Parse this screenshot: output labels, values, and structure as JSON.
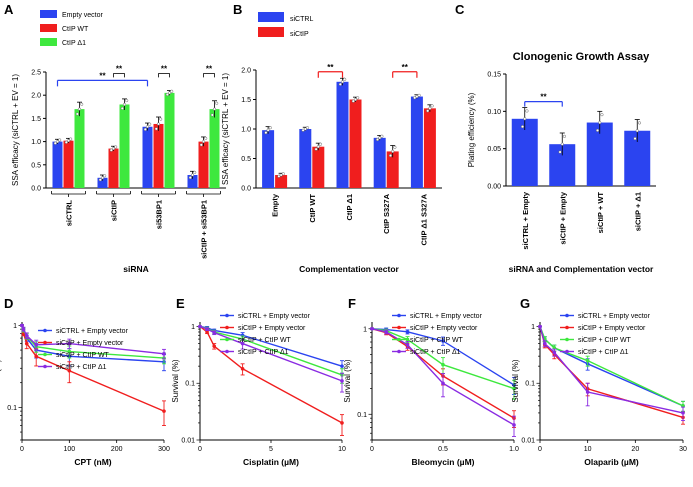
{
  "panels": {
    "A": "A",
    "B": "B",
    "C": "C",
    "D": "D",
    "E": "E",
    "F": "F",
    "G": "G"
  },
  "colors": {
    "blue": "#2b44f0",
    "red": "#f01e1e",
    "green": "#3ee83e",
    "purple": "#8a2be2"
  },
  "chart_data": [
    {
      "id": "A",
      "type": "bar",
      "title": "",
      "xlabel": "siRNA",
      "ylabel": "SSA efficacy (siCTRL + EV = 1)",
      "ylim": [
        0,
        2.5
      ],
      "yticks": [
        "0.0",
        "0.5",
        "1.0",
        "1.5",
        "2.0",
        "2.5"
      ],
      "categories": [
        "siCTRL",
        "siCtIP",
        "si53BP1",
        "siCtIP + si53BP1"
      ],
      "series": [
        {
          "name": "Empty vector",
          "values": [
            1.0,
            0.22,
            1.32,
            0.28
          ],
          "errors": [
            0.05,
            0.06,
            0.08,
            0.08
          ]
        },
        {
          "name": "CtIP WT",
          "values": [
            1.02,
            0.85,
            1.38,
            1.0
          ],
          "errors": [
            0.05,
            0.05,
            0.15,
            0.1
          ]
        },
        {
          "name": "CtIP Δ1",
          "values": [
            1.7,
            1.8,
            2.05,
            1.7
          ],
          "errors": [
            0.15,
            0.12,
            0.05,
            0.18
          ]
        }
      ],
      "annotations": [
        "**",
        "**",
        "**",
        "**"
      ]
    },
    {
      "id": "B",
      "type": "bar",
      "title": "",
      "xlabel": "Complementation vector",
      "ylabel": "SSA efficacy (siCTRL + EV = 1)",
      "ylim": [
        0,
        2.0
      ],
      "yticks": [
        "0.0",
        "0.5",
        "1.0",
        "1.5",
        "2.0"
      ],
      "categories": [
        "Empty",
        "CtIP WT",
        "CtIP Δ1",
        "CtIP S327A",
        "CtIP Δ1 S327A"
      ],
      "series": [
        {
          "name": "siCTRL",
          "values": [
            0.98,
            1.0,
            1.8,
            0.85,
            1.55
          ],
          "errors": [
            0.06,
            0.03,
            0.06,
            0.04,
            0.03
          ]
        },
        {
          "name": "siCtIP",
          "values": [
            0.22,
            0.7,
            1.5,
            0.62,
            1.35
          ],
          "errors": [
            0.03,
            0.06,
            0.04,
            0.1,
            0.06
          ]
        }
      ],
      "annotations": [
        "**",
        "**"
      ]
    },
    {
      "id": "C",
      "type": "bar",
      "title": "Clonogenic Growth Assay",
      "xlabel": "siRNA and Complementation vector",
      "ylabel": "Plating efficiency (%)",
      "ylim": [
        0,
        0.15
      ],
      "yticks": [
        "0.00",
        "0.05",
        "0.10",
        "0.15"
      ],
      "categories": [
        "siCTRL + Empty",
        "siCtIP + Empty",
        "siCtIP + WT",
        "siCtIP + Δ1"
      ],
      "values": [
        0.09,
        0.056,
        0.085,
        0.074
      ],
      "errors": [
        0.015,
        0.015,
        0.015,
        0.015
      ],
      "annotations": [
        "**"
      ]
    },
    {
      "id": "D",
      "type": "line",
      "xlabel": "CPT (nM)",
      "ylabel": "Survival (%)",
      "xlim": [
        0,
        300
      ],
      "xticks": [
        "0",
        "100",
        "200",
        "300"
      ],
      "yticks": [
        "0.1",
        "1"
      ],
      "ylim": [
        0.04,
        1.1
      ],
      "series": [
        {
          "name": "siCTRL + Empty vector",
          "x": [
            0,
            3,
            10,
            30,
            100,
            300
          ],
          "y": [
            1.0,
            0.85,
            0.7,
            0.5,
            0.42,
            0.36
          ],
          "errors": [
            0.02,
            0.05,
            0.06,
            0.1,
            0.1,
            0.08
          ]
        },
        {
          "name": "siCtIP + Empty vector",
          "x": [
            0,
            3,
            10,
            30,
            100,
            300
          ],
          "y": [
            1.0,
            0.8,
            0.6,
            0.42,
            0.28,
            0.09
          ],
          "errors": [
            0.02,
            0.05,
            0.08,
            0.1,
            0.08,
            0.03
          ]
        },
        {
          "name": "siCtIP + CtIP WT",
          "x": [
            0,
            3,
            10,
            30,
            100,
            300
          ],
          "y": [
            1.0,
            0.88,
            0.74,
            0.55,
            0.48,
            0.4
          ],
          "errors": [
            0.02,
            0.05,
            0.06,
            0.08,
            0.08,
            0.06
          ]
        },
        {
          "name": "siCtIP + CtIP Δ1",
          "x": [
            0,
            3,
            10,
            30,
            100,
            300
          ],
          "y": [
            1.0,
            0.9,
            0.75,
            0.58,
            0.6,
            0.45
          ],
          "errors": [
            0.02,
            0.05,
            0.06,
            0.08,
            0.08,
            0.06
          ]
        }
      ]
    },
    {
      "id": "E",
      "type": "line",
      "xlabel": "Cisplatin (µM)",
      "ylabel": "Survival (%)",
      "xlim": [
        0,
        10
      ],
      "xticks": [
        "0",
        "5",
        "10"
      ],
      "yticks": [
        "0.01",
        "0.1",
        "1"
      ],
      "ylim": [
        0.01,
        1.2
      ],
      "series": [
        {
          "name": "siCTRL + Empty vector",
          "x": [
            0,
            0.5,
            1,
            3,
            10
          ],
          "y": [
            1.0,
            0.95,
            0.85,
            0.7,
            0.2
          ],
          "errors": [
            0.02,
            0.05,
            0.05,
            0.08,
            0.05
          ]
        },
        {
          "name": "siCtIP + Empty vector",
          "x": [
            0,
            0.5,
            1,
            3,
            10
          ],
          "y": [
            1.0,
            0.8,
            0.45,
            0.18,
            0.02
          ],
          "errors": [
            0.02,
            0.05,
            0.05,
            0.04,
            0.008
          ]
        },
        {
          "name": "siCtIP + CtIP WT",
          "x": [
            0,
            0.5,
            1,
            3,
            10
          ],
          "y": [
            1.0,
            0.92,
            0.8,
            0.6,
            0.14
          ],
          "errors": [
            0.02,
            0.05,
            0.06,
            0.08,
            0.04
          ]
        },
        {
          "name": "siCtIP + CtIP Δ1",
          "x": [
            0,
            0.5,
            1,
            3,
            10
          ],
          "y": [
            1.0,
            0.9,
            0.78,
            0.5,
            0.11
          ],
          "errors": [
            0.02,
            0.05,
            0.06,
            0.1,
            0.04
          ]
        }
      ]
    },
    {
      "id": "F",
      "type": "line",
      "xlabel": "Bleomycin (µM)",
      "ylabel": "Survival (%)",
      "xlim": [
        0,
        1.0
      ],
      "xticks": [
        "0",
        "0.5",
        "1.0"
      ],
      "yticks": [
        "0.1",
        "1"
      ],
      "ylim": [
        0.05,
        1.2
      ],
      "series": [
        {
          "name": "siCTRL + Empty vector",
          "x": [
            0,
            0.1,
            0.25,
            0.5,
            1.0
          ],
          "y": [
            1.0,
            0.98,
            0.92,
            0.72,
            0.22
          ],
          "errors": [
            0.02,
            0.04,
            0.05,
            0.08,
            0.05
          ]
        },
        {
          "name": "siCtIP + Empty vector",
          "x": [
            0,
            0.1,
            0.25,
            0.5,
            1.0
          ],
          "y": [
            1.0,
            0.9,
            0.62,
            0.28,
            0.09
          ],
          "errors": [
            0.02,
            0.05,
            0.06,
            0.06,
            0.02
          ]
        },
        {
          "name": "siCtIP + CtIP WT",
          "x": [
            0,
            0.1,
            0.25,
            0.5,
            1.0
          ],
          "y": [
            1.0,
            0.95,
            0.75,
            0.38,
            0.2
          ],
          "errors": [
            0.02,
            0.04,
            0.06,
            0.08,
            0.05
          ]
        },
        {
          "name": "siCtIP + CtIP Δ1",
          "x": [
            0,
            0.1,
            0.25,
            0.5,
            1.0
          ],
          "y": [
            1.0,
            0.92,
            0.65,
            0.23,
            0.075
          ],
          "errors": [
            0.02,
            0.05,
            0.06,
            0.07,
            0.02
          ]
        }
      ]
    },
    {
      "id": "G",
      "type": "line",
      "xlabel": "Olaparib (µM)",
      "ylabel": "Survival (%)",
      "xlim": [
        0,
        30
      ],
      "xticks": [
        "0",
        "10",
        "20",
        "30"
      ],
      "yticks": [
        "0.01",
        "0.1",
        "1"
      ],
      "ylim": [
        0.01,
        1.2
      ],
      "series": [
        {
          "name": "siCTRL + Empty vector",
          "x": [
            0,
            1,
            3,
            10,
            30
          ],
          "y": [
            1.0,
            0.6,
            0.42,
            0.22,
            0.04
          ],
          "errors": [
            0.02,
            0.06,
            0.05,
            0.05,
            0.008
          ]
        },
        {
          "name": "siCtIP + Empty vector",
          "x": [
            0,
            1,
            3,
            10,
            30
          ],
          "y": [
            1.0,
            0.48,
            0.32,
            0.08,
            0.025
          ],
          "errors": [
            0.02,
            0.06,
            0.05,
            0.02,
            0.006
          ]
        },
        {
          "name": "siCtIP + CtIP WT",
          "x": [
            0,
            1,
            3,
            10,
            30
          ],
          "y": [
            1.0,
            0.6,
            0.42,
            0.25,
            0.04
          ],
          "errors": [
            0.02,
            0.06,
            0.05,
            0.05,
            0.008
          ]
        },
        {
          "name": "siCtIP + CtIP Δ1",
          "x": [
            0,
            1,
            3,
            10,
            30
          ],
          "y": [
            1.0,
            0.5,
            0.35,
            0.07,
            0.03
          ],
          "errors": [
            0.02,
            0.06,
            0.05,
            0.03,
            0.008
          ]
        }
      ]
    }
  ]
}
